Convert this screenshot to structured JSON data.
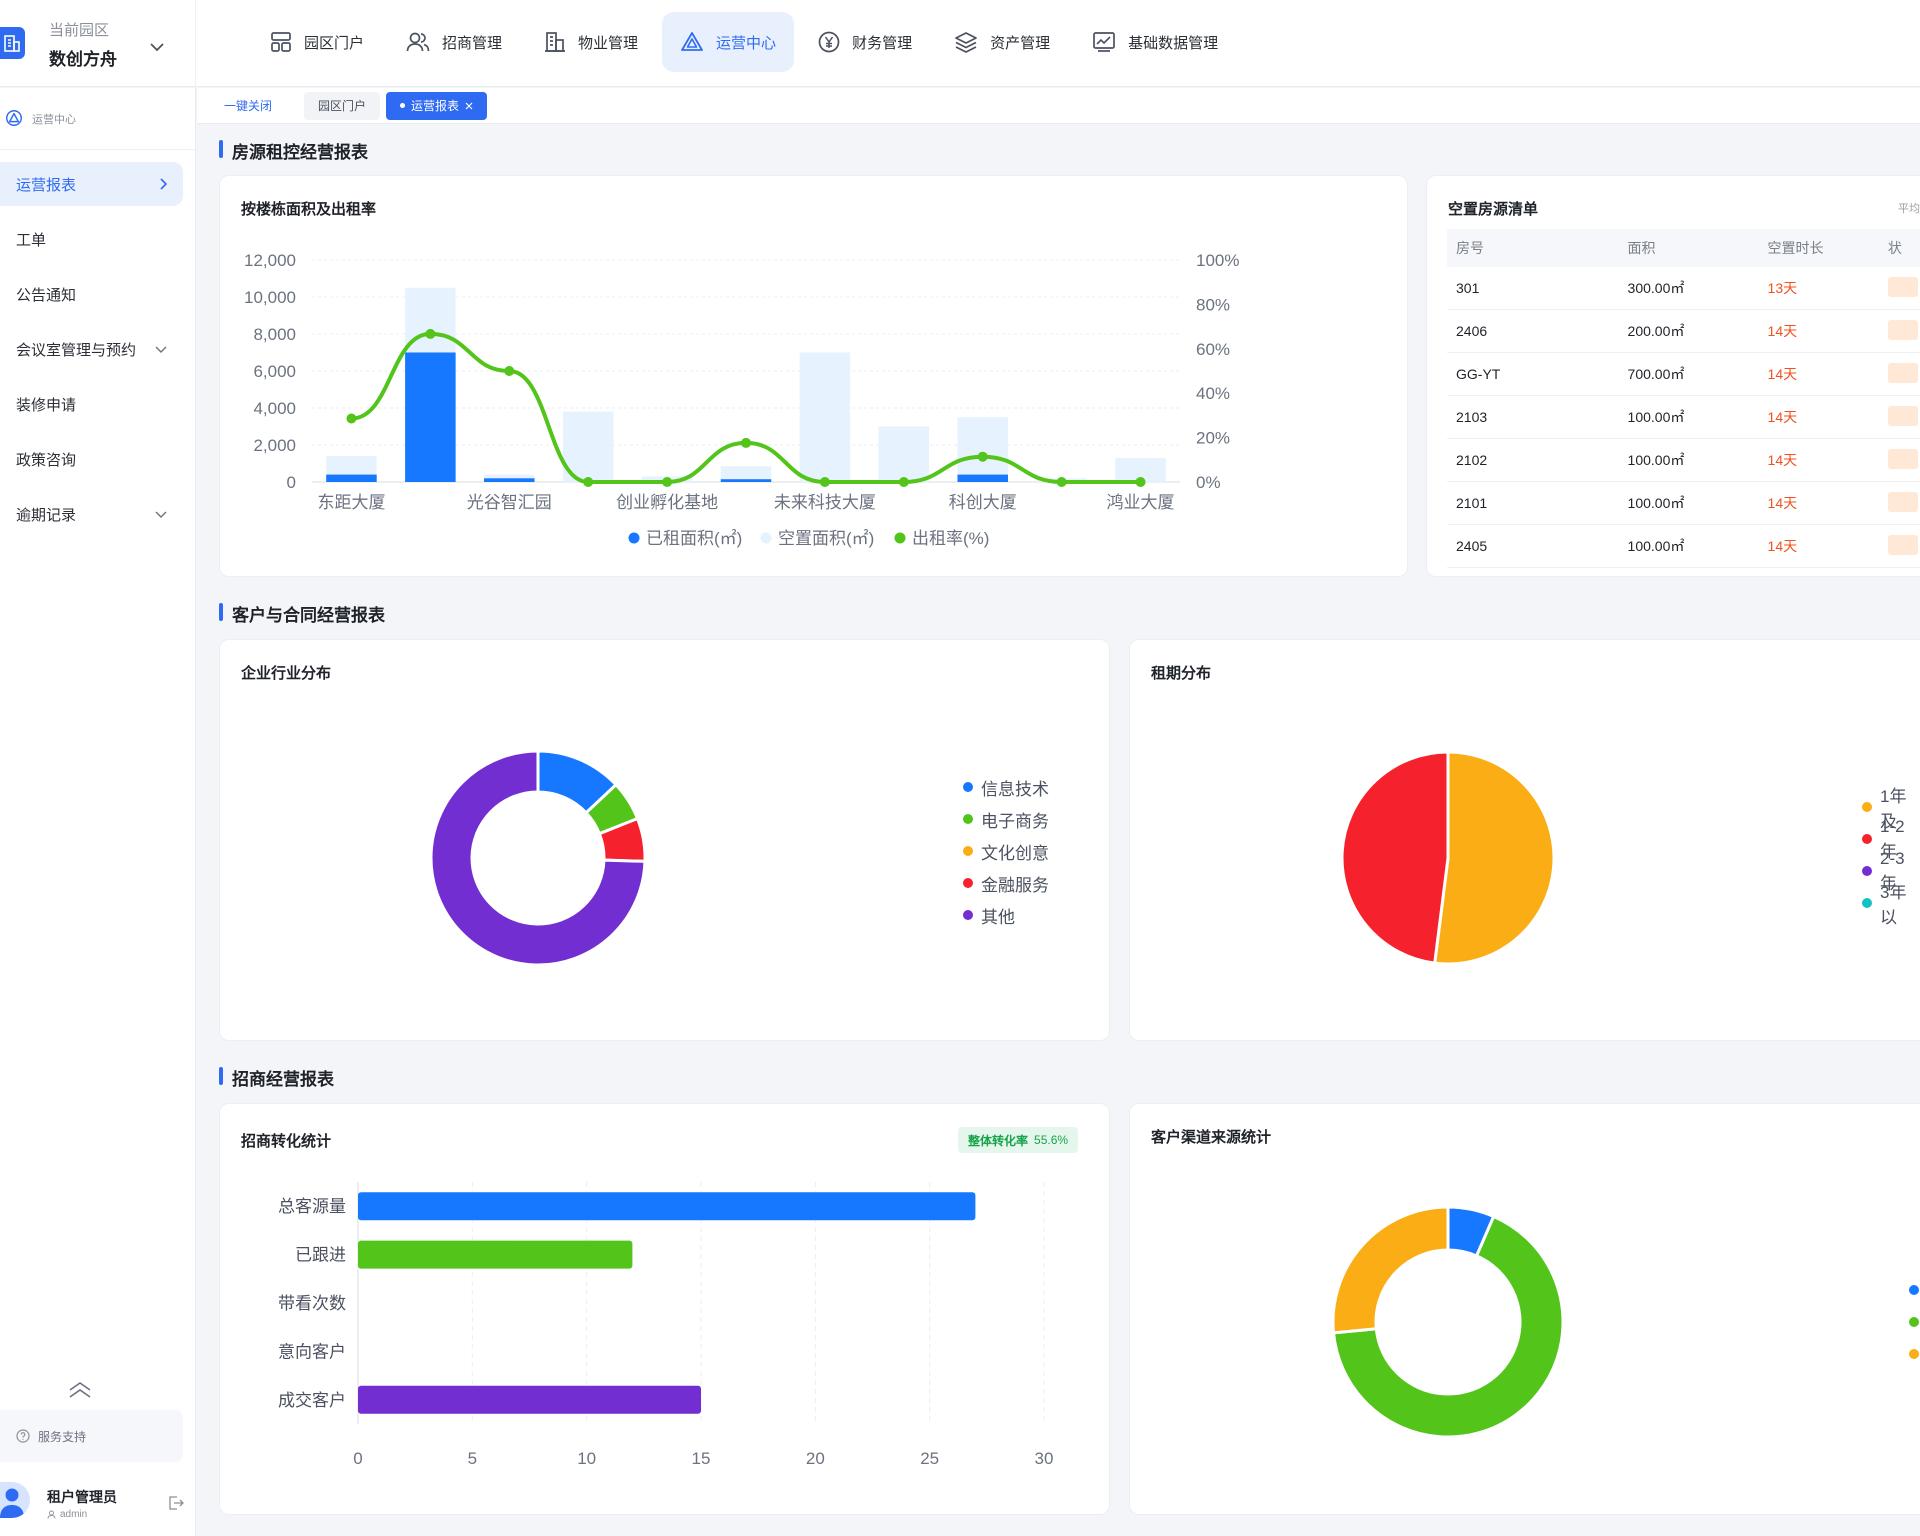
{
  "header": {
    "park_label": "当前园区",
    "park_name": "数创方舟",
    "nav": [
      {
        "label": "园区门户",
        "icon": "portal-icon",
        "active": false
      },
      {
        "label": "招商管理",
        "icon": "users-icon",
        "active": false
      },
      {
        "label": "物业管理",
        "icon": "building-icon",
        "active": false
      },
      {
        "label": "运营中心",
        "icon": "operation-icon",
        "active": true
      },
      {
        "label": "财务管理",
        "icon": "yen-icon",
        "active": false
      },
      {
        "label": "资产管理",
        "icon": "layers-icon",
        "active": false
      },
      {
        "label": "基础数据管理",
        "icon": "data-icon",
        "active": false
      }
    ]
  },
  "sidebar": {
    "section": "运营中心",
    "items": [
      {
        "label": "运营报表",
        "active": true,
        "suffix": "chevron-right-icon"
      },
      {
        "label": "工单",
        "active": false
      },
      {
        "label": "公告通知",
        "active": false
      },
      {
        "label": "会议室管理与预约",
        "active": false,
        "suffix": "chevron-down-icon"
      },
      {
        "label": "装修申请",
        "active": false
      },
      {
        "label": "政策咨询",
        "active": false
      },
      {
        "label": "逾期记录",
        "active": false,
        "suffix": "chevron-down-icon"
      }
    ],
    "support": "服务支持",
    "user_name": "租户管理员",
    "user_account": "admin"
  },
  "tabs": {
    "close_all": "一键关闭",
    "items": [
      {
        "label": "园区门户",
        "current": false
      },
      {
        "label": "运营报表",
        "current": true
      }
    ]
  },
  "sections": {
    "rental": "房源租控经营报表",
    "customer": "客户与合同经营报表",
    "investment": "招商经营报表"
  },
  "cards": {
    "building_chart": "按楼栋面积及出租率",
    "vacancy": "空置房源清单",
    "vacancy_unit_note": "平均",
    "industry": "企业行业分布",
    "lease_term": "租期分布",
    "conversion": "招商转化统计",
    "conversion_rate_label": "整体转化率",
    "conversion_rate_value": "55.6%",
    "channel": "客户渠道来源统计"
  },
  "vacancy_table": {
    "columns": [
      "房号",
      "面积",
      "空置时长",
      "状"
    ],
    "rows": [
      {
        "room": "301",
        "area": "300.00㎡",
        "duration": "13天"
      },
      {
        "room": "2406",
        "area": "200.00㎡",
        "duration": "14天"
      },
      {
        "room": "GG-YT",
        "area": "700.00㎡",
        "duration": "14天"
      },
      {
        "room": "2103",
        "area": "100.00㎡",
        "duration": "14天"
      },
      {
        "room": "2102",
        "area": "100.00㎡",
        "duration": "14天"
      },
      {
        "room": "2101",
        "area": "100.00㎡",
        "duration": "14天"
      },
      {
        "room": "2405",
        "area": "100.00㎡",
        "duration": "14天"
      }
    ]
  },
  "colors": {
    "blue": "#1677ff",
    "light_blue": "#e6f2fd",
    "green": "#52c41a",
    "orange": "#faad14",
    "red": "#f5222d",
    "purple": "#722ed1",
    "cyan": "#13c2c2"
  },
  "chart_data": [
    {
      "type": "bar",
      "categories": [
        "东距大厦",
        "",
        "光谷智汇园",
        "",
        "创业孵化基地",
        "",
        "未来科技大厦",
        "",
        "科创大厦",
        "",
        "鸿业大厦"
      ],
      "series": [
        {
          "name": "已租面积(㎡)",
          "values": [
            400,
            7000,
            200,
            0,
            0,
            150,
            0,
            0,
            400,
            0,
            0
          ]
        },
        {
          "name": "空置面积(㎡)",
          "values": [
            1000,
            3500,
            200,
            3800,
            300,
            700,
            7000,
            3000,
            3100,
            200,
            1300
          ]
        },
        {
          "name": "出租率(%)",
          "values": [
            28.6,
            66.7,
            50,
            0,
            0,
            17.6,
            0,
            0,
            11.4,
            0,
            0
          ]
        }
      ],
      "y_left": {
        "ticks": [
          "0",
          "2,000",
          "4,000",
          "6,000",
          "8,000",
          "10,000",
          "12,000"
        ],
        "range": [
          0,
          12000
        ]
      },
      "y_right": {
        "ticks": [
          "0%",
          "20%",
          "40%",
          "60%",
          "80%",
          "100%"
        ],
        "range": [
          0,
          100
        ]
      },
      "legend": "bottom",
      "grid": true
    },
    {
      "type": "pie",
      "donut": true,
      "series": [
        {
          "name": "信息技术",
          "value": 13
        },
        {
          "name": "电子商务",
          "value": 6
        },
        {
          "name": "文化创意",
          "value": 0
        },
        {
          "name": "金融服务",
          "value": 6.5
        },
        {
          "name": "其他",
          "value": 74.5
        }
      ],
      "legend": "right"
    },
    {
      "type": "pie",
      "donut": false,
      "series": [
        {
          "name": "1年及",
          "value": 52
        },
        {
          "name": "1-2年",
          "value": 48
        },
        {
          "name": "2-3年",
          "value": 0
        },
        {
          "name": "3年以",
          "value": 0
        }
      ],
      "legend": "right"
    },
    {
      "type": "bar",
      "orientation": "horizontal",
      "categories": [
        "总客源量",
        "已跟进",
        "带看次数",
        "意向客户",
        "成交客户"
      ],
      "values": [
        27,
        12,
        0,
        0,
        15
      ],
      "x_ticks": [
        "0",
        "5",
        "10",
        "15",
        "20",
        "25",
        "30"
      ],
      "xlim": [
        0,
        30
      ],
      "grid": true
    },
    {
      "type": "pie",
      "donut": true,
      "series": [
        {
          "name": "",
          "value": 6.5
        },
        {
          "name": "",
          "value": 67
        },
        {
          "name": "",
          "value": 26.5
        }
      ],
      "legend": "right"
    }
  ]
}
